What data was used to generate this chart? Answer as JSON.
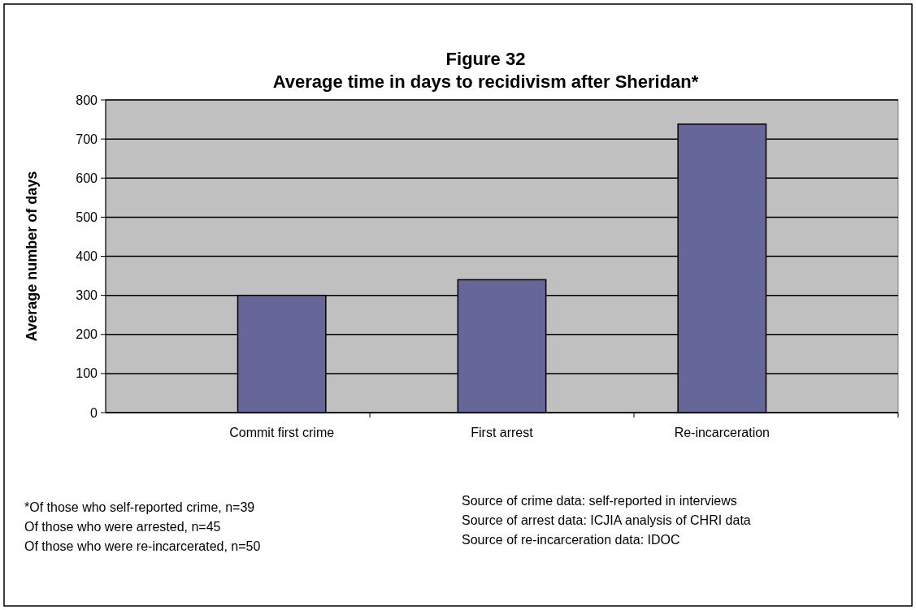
{
  "chart_data": {
    "type": "bar",
    "title": "Figure 32",
    "subtitle": "Average time in days to recidivism after Sheridan*",
    "ylabel": "Average number of days",
    "categories": [
      "Commit first crime",
      "First arrest",
      "Re-incarceration"
    ],
    "values": [
      300,
      340,
      738
    ],
    "color": "#666699",
    "ylim": [
      0,
      800
    ],
    "yticks": [
      0,
      100,
      200,
      300,
      400,
      500,
      600,
      700,
      800
    ],
    "grid": "y",
    "annotations": [
      "*Of those who self-reported crime, n=39",
      "Of those who were arrested, n=45",
      "Of those who were re-incarcerated, n=50",
      "Source of crime data: self-reported in interviews",
      "Source of arrest data: ICJIA analysis of CHRI data",
      "Source of re-incarceration data: IDOC"
    ]
  }
}
